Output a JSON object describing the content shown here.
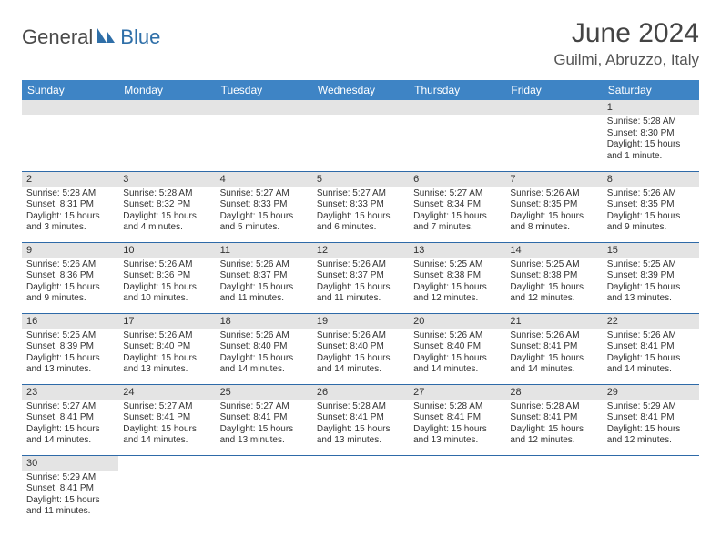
{
  "brand": {
    "part1": "General",
    "part2": "Blue"
  },
  "title": "June 2024",
  "location": "Guilmi, Abruzzo, Italy",
  "colors": {
    "header_bg": "#3e84c5",
    "header_text": "#ffffff",
    "daynum_bg": "#e4e4e4",
    "row_border": "#2e6aa8",
    "logo_gray": "#4a4a4a",
    "logo_blue": "#2f6fa8"
  },
  "day_headers": [
    "Sunday",
    "Monday",
    "Tuesday",
    "Wednesday",
    "Thursday",
    "Friday",
    "Saturday"
  ],
  "weeks": [
    [
      null,
      null,
      null,
      null,
      null,
      null,
      {
        "n": "1",
        "sr": "Sunrise: 5:28 AM",
        "ss": "Sunset: 8:30 PM",
        "d1": "Daylight: 15 hours",
        "d2": "and 1 minute."
      }
    ],
    [
      {
        "n": "2",
        "sr": "Sunrise: 5:28 AM",
        "ss": "Sunset: 8:31 PM",
        "d1": "Daylight: 15 hours",
        "d2": "and 3 minutes."
      },
      {
        "n": "3",
        "sr": "Sunrise: 5:28 AM",
        "ss": "Sunset: 8:32 PM",
        "d1": "Daylight: 15 hours",
        "d2": "and 4 minutes."
      },
      {
        "n": "4",
        "sr": "Sunrise: 5:27 AM",
        "ss": "Sunset: 8:33 PM",
        "d1": "Daylight: 15 hours",
        "d2": "and 5 minutes."
      },
      {
        "n": "5",
        "sr": "Sunrise: 5:27 AM",
        "ss": "Sunset: 8:33 PM",
        "d1": "Daylight: 15 hours",
        "d2": "and 6 minutes."
      },
      {
        "n": "6",
        "sr": "Sunrise: 5:27 AM",
        "ss": "Sunset: 8:34 PM",
        "d1": "Daylight: 15 hours",
        "d2": "and 7 minutes."
      },
      {
        "n": "7",
        "sr": "Sunrise: 5:26 AM",
        "ss": "Sunset: 8:35 PM",
        "d1": "Daylight: 15 hours",
        "d2": "and 8 minutes."
      },
      {
        "n": "8",
        "sr": "Sunrise: 5:26 AM",
        "ss": "Sunset: 8:35 PM",
        "d1": "Daylight: 15 hours",
        "d2": "and 9 minutes."
      }
    ],
    [
      {
        "n": "9",
        "sr": "Sunrise: 5:26 AM",
        "ss": "Sunset: 8:36 PM",
        "d1": "Daylight: 15 hours",
        "d2": "and 9 minutes."
      },
      {
        "n": "10",
        "sr": "Sunrise: 5:26 AM",
        "ss": "Sunset: 8:36 PM",
        "d1": "Daylight: 15 hours",
        "d2": "and 10 minutes."
      },
      {
        "n": "11",
        "sr": "Sunrise: 5:26 AM",
        "ss": "Sunset: 8:37 PM",
        "d1": "Daylight: 15 hours",
        "d2": "and 11 minutes."
      },
      {
        "n": "12",
        "sr": "Sunrise: 5:26 AM",
        "ss": "Sunset: 8:37 PM",
        "d1": "Daylight: 15 hours",
        "d2": "and 11 minutes."
      },
      {
        "n": "13",
        "sr": "Sunrise: 5:25 AM",
        "ss": "Sunset: 8:38 PM",
        "d1": "Daylight: 15 hours",
        "d2": "and 12 minutes."
      },
      {
        "n": "14",
        "sr": "Sunrise: 5:25 AM",
        "ss": "Sunset: 8:38 PM",
        "d1": "Daylight: 15 hours",
        "d2": "and 12 minutes."
      },
      {
        "n": "15",
        "sr": "Sunrise: 5:25 AM",
        "ss": "Sunset: 8:39 PM",
        "d1": "Daylight: 15 hours",
        "d2": "and 13 minutes."
      }
    ],
    [
      {
        "n": "16",
        "sr": "Sunrise: 5:25 AM",
        "ss": "Sunset: 8:39 PM",
        "d1": "Daylight: 15 hours",
        "d2": "and 13 minutes."
      },
      {
        "n": "17",
        "sr": "Sunrise: 5:26 AM",
        "ss": "Sunset: 8:40 PM",
        "d1": "Daylight: 15 hours",
        "d2": "and 13 minutes."
      },
      {
        "n": "18",
        "sr": "Sunrise: 5:26 AM",
        "ss": "Sunset: 8:40 PM",
        "d1": "Daylight: 15 hours",
        "d2": "and 14 minutes."
      },
      {
        "n": "19",
        "sr": "Sunrise: 5:26 AM",
        "ss": "Sunset: 8:40 PM",
        "d1": "Daylight: 15 hours",
        "d2": "and 14 minutes."
      },
      {
        "n": "20",
        "sr": "Sunrise: 5:26 AM",
        "ss": "Sunset: 8:40 PM",
        "d1": "Daylight: 15 hours",
        "d2": "and 14 minutes."
      },
      {
        "n": "21",
        "sr": "Sunrise: 5:26 AM",
        "ss": "Sunset: 8:41 PM",
        "d1": "Daylight: 15 hours",
        "d2": "and 14 minutes."
      },
      {
        "n": "22",
        "sr": "Sunrise: 5:26 AM",
        "ss": "Sunset: 8:41 PM",
        "d1": "Daylight: 15 hours",
        "d2": "and 14 minutes."
      }
    ],
    [
      {
        "n": "23",
        "sr": "Sunrise: 5:27 AM",
        "ss": "Sunset: 8:41 PM",
        "d1": "Daylight: 15 hours",
        "d2": "and 14 minutes."
      },
      {
        "n": "24",
        "sr": "Sunrise: 5:27 AM",
        "ss": "Sunset: 8:41 PM",
        "d1": "Daylight: 15 hours",
        "d2": "and 14 minutes."
      },
      {
        "n": "25",
        "sr": "Sunrise: 5:27 AM",
        "ss": "Sunset: 8:41 PM",
        "d1": "Daylight: 15 hours",
        "d2": "and 13 minutes."
      },
      {
        "n": "26",
        "sr": "Sunrise: 5:28 AM",
        "ss": "Sunset: 8:41 PM",
        "d1": "Daylight: 15 hours",
        "d2": "and 13 minutes."
      },
      {
        "n": "27",
        "sr": "Sunrise: 5:28 AM",
        "ss": "Sunset: 8:41 PM",
        "d1": "Daylight: 15 hours",
        "d2": "and 13 minutes."
      },
      {
        "n": "28",
        "sr": "Sunrise: 5:28 AM",
        "ss": "Sunset: 8:41 PM",
        "d1": "Daylight: 15 hours",
        "d2": "and 12 minutes."
      },
      {
        "n": "29",
        "sr": "Sunrise: 5:29 AM",
        "ss": "Sunset: 8:41 PM",
        "d1": "Daylight: 15 hours",
        "d2": "and 12 minutes."
      }
    ],
    [
      {
        "n": "30",
        "sr": "Sunrise: 5:29 AM",
        "ss": "Sunset: 8:41 PM",
        "d1": "Daylight: 15 hours",
        "d2": "and 11 minutes."
      },
      null,
      null,
      null,
      null,
      null,
      null
    ]
  ]
}
